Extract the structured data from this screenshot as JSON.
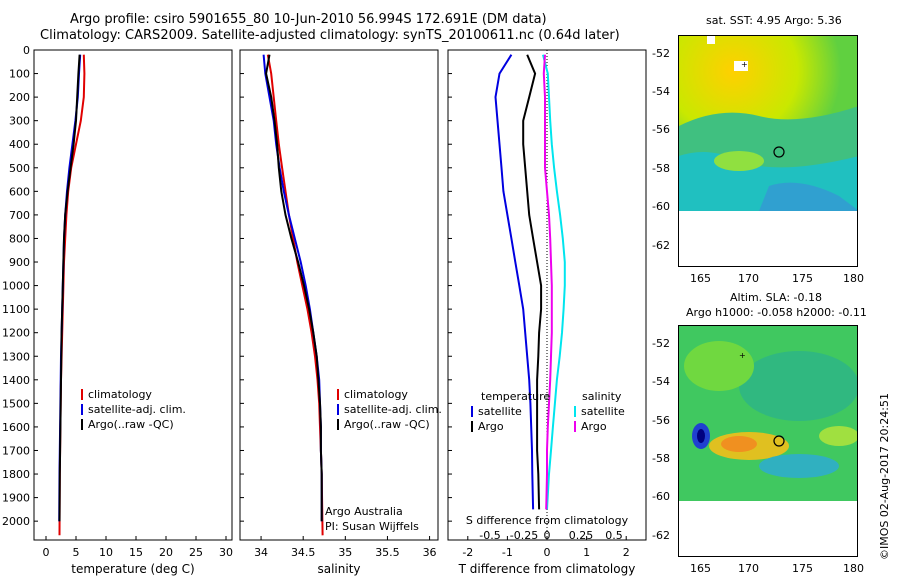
{
  "header": {
    "title_line1": "Argo profile: csiro 5901655_80 10-Jun-2010 56.994S 172.691E (DM data)",
    "title_line2": "Climatology: CARS2009. Satellite-adjusted climatology: synTS_20100611.nc (0.64d later)"
  },
  "colors": {
    "climatology": "#e00000",
    "satellite": "#0000e0",
    "argo": "#000000",
    "cyan": "#00e5ee",
    "magenta": "#ee00ee"
  },
  "chart_data": [
    {
      "type": "line",
      "name": "temperature",
      "xlabel": "temperature (deg C)",
      "ylabel": "",
      "xlim": [
        -2,
        31
      ],
      "ylim": [
        2080,
        0
      ],
      "xticks": [
        0,
        5,
        10,
        15,
        20,
        25,
        30
      ],
      "yticks": [
        0,
        100,
        200,
        300,
        400,
        500,
        600,
        700,
        800,
        900,
        1000,
        1100,
        1200,
        1300,
        1400,
        1500,
        1600,
        1700,
        1800,
        1900,
        2000
      ],
      "legend": [
        "climatology",
        "satellite-adj. clim.",
        "Argo(..raw -QC)"
      ],
      "series": [
        {
          "name": "climatology",
          "color": "climatology",
          "x": [
            6.3,
            6.4,
            6.3,
            5.8,
            5.0,
            4.2,
            3.7,
            3.4,
            3.2,
            3.0,
            2.9,
            2.8,
            2.7,
            2.6,
            2.5,
            2.45,
            2.4,
            2.35,
            2.3,
            2.25
          ],
          "y": [
            20,
            100,
            200,
            300,
            400,
            500,
            600,
            700,
            800,
            900,
            1000,
            1100,
            1200,
            1300,
            1400,
            1500,
            1600,
            1700,
            1800,
            2060
          ]
        },
        {
          "name": "satellite-adj. clim.",
          "color": "satellite",
          "x": [
            5.7,
            5.5,
            5.3,
            4.9,
            4.4,
            3.9,
            3.5,
            3.2,
            3.0,
            2.9,
            2.8,
            2.7,
            2.6,
            2.5,
            2.45,
            2.4,
            2.35,
            2.3,
            2.25,
            2.2
          ],
          "y": [
            20,
            100,
            200,
            300,
            400,
            500,
            600,
            700,
            800,
            900,
            1000,
            1100,
            1200,
            1300,
            1400,
            1500,
            1600,
            1700,
            1800,
            2000
          ]
        },
        {
          "name": "Argo(..raw -QC)",
          "color": "argo",
          "x": [
            5.6,
            5.4,
            5.2,
            5.0,
            4.6,
            4.1,
            3.6,
            3.2,
            3.0,
            2.9,
            2.8,
            2.7,
            2.6,
            2.55,
            2.5,
            2.45,
            2.4,
            2.35,
            2.3,
            2.25
          ],
          "y": [
            20,
            100,
            200,
            300,
            400,
            500,
            600,
            700,
            800,
            900,
            1000,
            1100,
            1200,
            1300,
            1400,
            1500,
            1600,
            1700,
            1800,
            2000
          ]
        }
      ]
    },
    {
      "type": "line",
      "name": "salinity",
      "xlabel": "salinity",
      "ylabel": "",
      "xlim": [
        33.75,
        36.1
      ],
      "ylim": [
        2080,
        0
      ],
      "xticks": [
        34,
        34.5,
        35,
        35.5,
        36
      ],
      "legend": [
        "climatology",
        "satellite-adj. clim.",
        "Argo(..raw -QC)"
      ],
      "annotation": [
        "Argo Australia",
        "PI: Susan Wijffels"
      ],
      "series": [
        {
          "name": "climatology",
          "color": "climatology",
          "x": [
            34.08,
            34.12,
            34.15,
            34.18,
            34.21,
            34.25,
            34.29,
            34.33,
            34.38,
            34.43,
            34.49,
            34.55,
            34.6,
            34.64,
            34.67,
            34.69,
            34.7,
            34.71,
            34.72,
            34.73
          ],
          "y": [
            20,
            100,
            200,
            300,
            400,
            500,
            600,
            700,
            800,
            900,
            1000,
            1100,
            1200,
            1300,
            1400,
            1500,
            1600,
            1700,
            1800,
            2060
          ]
        },
        {
          "name": "satellite-adj. clim.",
          "color": "satellite",
          "x": [
            34.03,
            34.05,
            34.1,
            34.15,
            34.18,
            34.22,
            34.27,
            34.33,
            34.4,
            34.47,
            34.53,
            34.58,
            34.62,
            34.66,
            34.69,
            34.7,
            34.71,
            34.71,
            34.72,
            34.72
          ],
          "y": [
            20,
            100,
            200,
            300,
            400,
            500,
            600,
            700,
            800,
            900,
            1000,
            1100,
            1200,
            1300,
            1400,
            1500,
            1600,
            1700,
            1800,
            2000
          ]
        },
        {
          "name": "Argo(..raw -QC)",
          "color": "argo",
          "x": [
            34.1,
            34.06,
            34.12,
            34.16,
            34.19,
            34.21,
            34.24,
            34.29,
            34.36,
            34.44,
            34.51,
            34.57,
            34.62,
            34.66,
            34.68,
            34.7,
            34.71,
            34.71,
            34.72,
            34.72
          ],
          "y": [
            20,
            100,
            200,
            300,
            400,
            500,
            600,
            700,
            800,
            900,
            1000,
            1100,
            1200,
            1300,
            1400,
            1500,
            1600,
            1700,
            1800,
            2000
          ]
        }
      ]
    },
    {
      "type": "line",
      "name": "difference",
      "xlabel": "T difference from climatology",
      "xlabel_top": "S difference from climatology",
      "xlim": [
        -2.5,
        2.5
      ],
      "ylim": [
        2080,
        0
      ],
      "xticks": [
        -2,
        -1,
        0,
        1,
        2
      ],
      "xticks_top": [
        -0.5,
        -0.25,
        0,
        0.25,
        0.5
      ],
      "legend_titles": [
        "temperature",
        "salinity"
      ],
      "legend_left": [
        "satellite",
        "Argo"
      ],
      "legend_right": [
        "satellite",
        "Argo"
      ],
      "series": [
        {
          "name": "T satellite",
          "color": "satellite",
          "x": [
            -0.9,
            -1.2,
            -1.3,
            -1.25,
            -1.2,
            -1.15,
            -1.1,
            -1.0,
            -0.9,
            -0.8,
            -0.7,
            -0.6,
            -0.55,
            -0.5,
            -0.45,
            -0.42,
            -0.4,
            -0.38,
            -0.37,
            -0.35
          ],
          "y": [
            20,
            100,
            200,
            300,
            400,
            500,
            600,
            700,
            800,
            900,
            1000,
            1100,
            1200,
            1300,
            1400,
            1500,
            1600,
            1700,
            1800,
            1950
          ]
        },
        {
          "name": "T Argo",
          "color": "argo",
          "x": [
            -0.5,
            -0.3,
            -0.45,
            -0.6,
            -0.6,
            -0.55,
            -0.5,
            -0.45,
            -0.35,
            -0.25,
            -0.15,
            -0.15,
            -0.2,
            -0.22,
            -0.25,
            -0.25,
            -0.25,
            -0.25,
            -0.22,
            -0.2
          ],
          "y": [
            20,
            100,
            200,
            300,
            400,
            500,
            600,
            700,
            800,
            900,
            1000,
            1100,
            1200,
            1300,
            1400,
            1500,
            1600,
            1700,
            1800,
            1950
          ]
        },
        {
          "name": "S satellite",
          "color": "cyan",
          "x": [
            -0.1,
            0.02,
            0.05,
            0.08,
            0.12,
            0.18,
            0.25,
            0.33,
            0.4,
            0.45,
            0.45,
            0.42,
            0.38,
            0.32,
            0.25,
            0.2,
            0.15,
            0.1,
            0.05,
            0.0
          ],
          "y": [
            20,
            100,
            200,
            300,
            400,
            500,
            600,
            700,
            800,
            900,
            1000,
            1100,
            1200,
            1300,
            1400,
            1500,
            1600,
            1700,
            1800,
            1950
          ]
        },
        {
          "name": "S Argo",
          "color": "magenta",
          "x": [
            -0.05,
            -0.08,
            -0.05,
            -0.05,
            -0.05,
            -0.05,
            0.0,
            0.05,
            0.08,
            0.1,
            0.12,
            0.12,
            0.12,
            0.1,
            0.08,
            0.05,
            0.02,
            0.0,
            0.0,
            -0.02
          ],
          "y": [
            20,
            100,
            200,
            300,
            400,
            500,
            600,
            700,
            800,
            900,
            1000,
            1100,
            1200,
            1300,
            1400,
            1500,
            1600,
            1700,
            1800,
            1950
          ]
        }
      ]
    }
  ],
  "maps": {
    "top": {
      "title": "sat. SST: 4.95 Argo: 5.36",
      "xticks": [
        "165",
        "170",
        "175",
        "180"
      ],
      "yticks": [
        "-52",
        "-54",
        "-56",
        "-58",
        "-60",
        "-62"
      ]
    },
    "bottom": {
      "title_line1": "Altim. SLA: -0.18",
      "title_line2": "Argo h1000: -0.058 h2000: -0.11",
      "xticks": [
        "165",
        "170",
        "175",
        "180"
      ],
      "yticks": [
        "-52",
        "-54",
        "-56",
        "-58",
        "-60",
        "-62"
      ]
    }
  },
  "footer": {
    "credit": "©IMOS 02-Aug-2017 20:24:51"
  }
}
